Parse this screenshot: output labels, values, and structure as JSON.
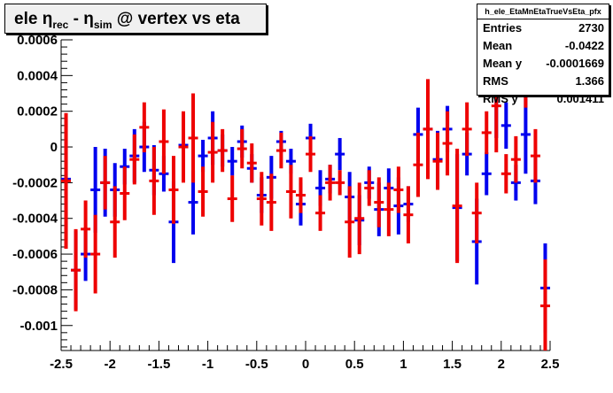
{
  "title": {
    "prefix": "ele ",
    "eta1": "η",
    "sub1": "rec",
    "mid": " - ",
    "eta2": "η",
    "sub2": "sim",
    "suffix": " @ vertex vs eta"
  },
  "stats": {
    "name": "h_ele_EtaMnEtaTrueVsEta_pfx",
    "rows": [
      {
        "label": "Entries",
        "value": "2730"
      },
      {
        "label": "Mean",
        "value": "-0.0422"
      },
      {
        "label": "Mean y",
        "value": "-0.0001669"
      },
      {
        "label": "RMS",
        "value": "1.366"
      },
      {
        "label": "RMS y",
        "value": "0.001411"
      }
    ]
  },
  "colors": {
    "blue": "#0000ee",
    "red": "#ee0000",
    "axis": "#000000"
  },
  "chart_data": {
    "type": "scatter",
    "title": "ele η_rec - η_sim @ vertex vs eta",
    "xlim": [
      -2.5,
      2.5
    ],
    "ylim": [
      -0.00114,
      0.0006
    ],
    "xticks": [
      {
        "v": -2.5,
        "label": "-2.5"
      },
      {
        "v": -2,
        "label": "-2"
      },
      {
        "v": -1.5,
        "label": "-1.5"
      },
      {
        "v": -1,
        "label": "-1"
      },
      {
        "v": -0.5,
        "label": "-0.5"
      },
      {
        "v": 0,
        "label": "0"
      },
      {
        "v": 0.5,
        "label": "0.5"
      },
      {
        "v": 1,
        "label": "1"
      },
      {
        "v": 1.5,
        "label": "1.5"
      },
      {
        "v": 2,
        "label": "2"
      },
      {
        "v": 2.5,
        "label": "2.5"
      }
    ],
    "yticks": [
      {
        "v": 0.0006,
        "label": "0.0006"
      },
      {
        "v": 0.0004,
        "label": "0.0004"
      },
      {
        "v": 0.0002,
        "label": "0.0002"
      },
      {
        "v": 0,
        "label": "0"
      },
      {
        "v": -0.0002,
        "label": "-0.0002"
      },
      {
        "v": -0.0004,
        "label": "-0.0004"
      },
      {
        "v": -0.0006,
        "label": "-0.0006"
      },
      {
        "v": -0.0008,
        "label": "-0.0008"
      },
      {
        "v": -0.001,
        "label": "-0.001"
      }
    ],
    "series": [
      {
        "color": "blue",
        "points": [
          [
            -2.45,
            -0.00018,
            0.00034
          ],
          [
            -2.35,
            -0.00069,
            0.00022
          ],
          [
            -2.25,
            -0.0006,
            0.00015
          ],
          [
            -2.15,
            -0.00024,
            0.00024
          ],
          [
            -2.05,
            -0.0002,
            0.00019
          ],
          [
            -1.95,
            -0.00024,
            0.00015
          ],
          [
            -1.85,
            -0.00011,
            0.0001
          ],
          [
            -1.75,
            -5e-05,
            0.00015
          ],
          [
            -1.65,
            0.0,
            0.00014
          ],
          [
            -1.55,
            -0.00013,
            0.00014
          ],
          [
            -1.45,
            -0.00015,
            0.0001
          ],
          [
            -1.35,
            -0.00042,
            0.00023
          ],
          [
            -1.25,
            1e-05,
            0.00014
          ],
          [
            -1.15,
            -0.00031,
            0.00018
          ],
          [
            -1.05,
            -5e-05,
            9e-05
          ],
          [
            -0.95,
            5e-05,
            0.00015
          ],
          [
            -0.85,
            -2e-05,
            9e-05
          ],
          [
            -0.75,
            -8e-05,
            8e-05
          ],
          [
            -0.65,
            3e-05,
            9e-05
          ],
          [
            -0.55,
            -0.00012,
            8e-05
          ],
          [
            -0.45,
            -0.00027,
            0.0001
          ],
          [
            -0.35,
            -0.00017,
            0.00012
          ],
          [
            -0.25,
            3e-05,
            6e-05
          ],
          [
            -0.15,
            -8e-05,
            7e-05
          ],
          [
            -0.05,
            -0.00032,
            0.00012
          ],
          [
            0.05,
            5e-05,
            8e-05
          ],
          [
            0.15,
            -0.00023,
            0.0001
          ],
          [
            0.25,
            -0.00018,
            8e-05
          ],
          [
            0.35,
            -4e-05,
            9e-05
          ],
          [
            0.45,
            -0.00028,
            0.00014
          ],
          [
            0.55,
            -0.00041,
            0.00014
          ],
          [
            0.65,
            -0.0002,
            9e-05
          ],
          [
            0.75,
            -0.00035,
            0.00015
          ],
          [
            0.85,
            -0.00023,
            0.00011
          ],
          [
            0.95,
            -0.00033,
            0.00016
          ],
          [
            1.05,
            -0.00032,
            0.0001
          ],
          [
            1.15,
            7e-05,
            0.00015
          ],
          [
            1.25,
            0.0001,
            0.00011
          ],
          [
            1.35,
            -7e-05,
            0.00016
          ],
          [
            1.45,
            0.0001,
            0.00013
          ],
          [
            1.55,
            -0.00034,
            0.0003
          ],
          [
            1.65,
            -4e-05,
            0.00012
          ],
          [
            1.75,
            -0.00053,
            0.00024
          ],
          [
            1.85,
            -0.00015,
            0.00012
          ],
          [
            1.95,
            0.0003,
            0.00025
          ],
          [
            2.05,
            0.00012,
            0.00013
          ],
          [
            2.15,
            -0.0002,
            0.0001
          ],
          [
            2.25,
            7e-05,
            0.00022
          ],
          [
            2.35,
            -0.00019,
            0.00013
          ],
          [
            2.45,
            -0.00079,
            0.00025
          ]
        ]
      },
      {
        "color": "red",
        "points": [
          [
            -2.45,
            -0.00019,
            0.00038
          ],
          [
            -2.35,
            -0.00069,
            0.00023
          ],
          [
            -2.25,
            -0.00046,
            0.00016
          ],
          [
            -2.15,
            -0.0006,
            0.00022
          ],
          [
            -2.05,
            -0.0002,
            0.00015
          ],
          [
            -1.95,
            -0.00042,
            0.0002
          ],
          [
            -1.85,
            -0.00026,
            0.00015
          ],
          [
            -1.75,
            -7e-05,
            0.00014
          ],
          [
            -1.65,
            0.00011,
            0.00014
          ],
          [
            -1.55,
            -0.00019,
            0.00019
          ],
          [
            -1.45,
            3e-05,
            0.00018
          ],
          [
            -1.35,
            -0.00024,
            0.00019
          ],
          [
            -1.25,
            0.0,
            0.0002
          ],
          [
            -1.15,
            5e-05,
            0.00025
          ],
          [
            -1.05,
            -0.00025,
            0.00014
          ],
          [
            -0.95,
            -3e-05,
            0.00017
          ],
          [
            -0.85,
            -2e-05,
            0.00012
          ],
          [
            -0.75,
            -0.00029,
            0.00013
          ],
          [
            -0.65,
            -1e-05,
            0.00011
          ],
          [
            -0.55,
            -9e-05,
            0.00011
          ],
          [
            -0.45,
            -0.00029,
            0.00015
          ],
          [
            -0.35,
            -0.00031,
            0.00016
          ],
          [
            -0.25,
            -2e-05,
            0.0001
          ],
          [
            -0.15,
            -0.00025,
            0.00015
          ],
          [
            -0.05,
            -0.00027,
            0.0001
          ],
          [
            0.05,
            -4e-05,
            0.0001
          ],
          [
            0.15,
            -0.00037,
            0.0001
          ],
          [
            0.25,
            -0.0002,
            0.0001
          ],
          [
            0.35,
            -0.0002,
            7e-05
          ],
          [
            0.45,
            -0.00042,
            0.0002
          ],
          [
            0.55,
            -0.0004,
            0.0002
          ],
          [
            0.65,
            -0.00023,
            0.0001
          ],
          [
            0.75,
            -0.00031,
            0.00014
          ],
          [
            0.85,
            -0.00035,
            0.00015
          ],
          [
            0.95,
            -0.00024,
            0.00013
          ],
          [
            1.05,
            -0.00038,
            0.00016
          ],
          [
            1.15,
            -0.0001,
            0.00018
          ],
          [
            1.25,
            0.0001,
            0.00028
          ],
          [
            1.35,
            -8e-05,
            0.00016
          ],
          [
            1.45,
            2e-05,
            0.00018
          ],
          [
            1.55,
            -0.00033,
            0.00032
          ],
          [
            1.65,
            0.0001,
            0.00015
          ],
          [
            1.75,
            -0.00037,
            0.00017
          ],
          [
            1.85,
            8e-05,
            0.00012
          ],
          [
            1.95,
            0.00023,
            0.00026
          ],
          [
            2.05,
            -0.00015,
            0.00011
          ],
          [
            2.15,
            -7e-05,
            0.00013
          ],
          [
            2.25,
            0.0004,
            0.00018
          ],
          [
            2.35,
            -5e-05,
            0.00015
          ],
          [
            2.45,
            -0.00089,
            0.00026
          ]
        ]
      }
    ]
  }
}
